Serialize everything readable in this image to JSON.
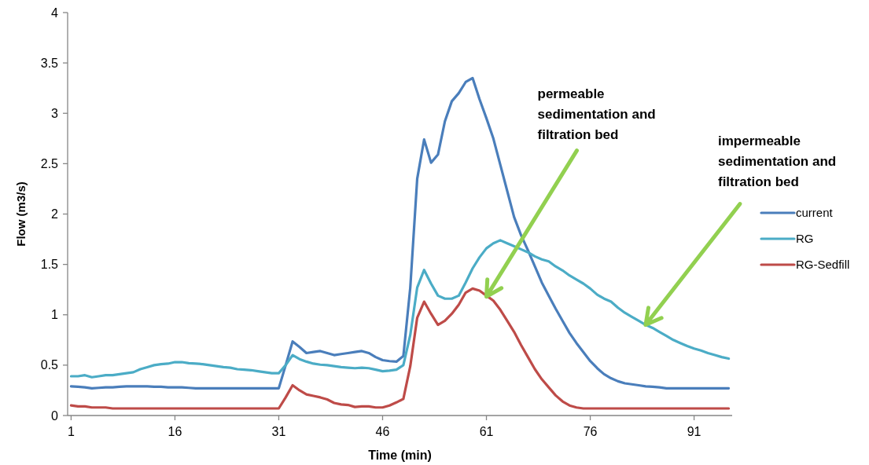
{
  "chart_data": {
    "type": "line",
    "xlabel": "Time (min)",
    "ylabel": "Flow (m3/s)",
    "x": [
      1,
      2,
      3,
      4,
      5,
      6,
      7,
      8,
      9,
      10,
      11,
      12,
      13,
      14,
      15,
      16,
      17,
      18,
      19,
      20,
      21,
      22,
      23,
      24,
      25,
      26,
      27,
      28,
      29,
      30,
      31,
      32,
      33,
      34,
      35,
      36,
      37,
      38,
      39,
      40,
      41,
      42,
      43,
      44,
      45,
      46,
      47,
      48,
      49,
      50,
      51,
      52,
      53,
      54,
      55,
      56,
      57,
      58,
      59,
      60,
      61,
      62,
      63,
      64,
      65,
      66,
      67,
      68,
      69,
      70,
      71,
      72,
      73,
      74,
      75,
      76,
      77,
      78,
      79,
      80,
      81,
      82,
      83,
      84,
      85,
      86,
      87,
      88,
      89,
      90,
      91,
      92,
      93,
      94,
      95,
      96
    ],
    "xlim": [
      0.5,
      96.5
    ],
    "xticks": [
      1,
      16,
      31,
      46,
      61,
      76,
      91
    ],
    "ylim": [
      0,
      4
    ],
    "yticks": [
      0,
      0.5,
      1,
      1.5,
      2,
      2.5,
      3,
      3.5,
      4
    ],
    "series": [
      {
        "name": "current",
        "color": "#4a7ebb",
        "values": [
          0.29,
          0.285,
          0.28,
          0.27,
          0.275,
          0.28,
          0.28,
          0.285,
          0.29,
          0.29,
          0.29,
          0.29,
          0.285,
          0.285,
          0.28,
          0.28,
          0.28,
          0.275,
          0.27,
          0.27,
          0.27,
          0.27,
          0.27,
          0.27,
          0.27,
          0.27,
          0.27,
          0.27,
          0.27,
          0.27,
          0.27,
          0.5,
          0.735,
          0.68,
          0.62,
          0.63,
          0.64,
          0.62,
          0.6,
          0.61,
          0.62,
          0.63,
          0.64,
          0.62,
          0.58,
          0.55,
          0.54,
          0.535,
          0.59,
          1.27,
          2.35,
          2.74,
          2.51,
          2.59,
          2.92,
          3.12,
          3.2,
          3.31,
          3.35,
          3.14,
          2.95,
          2.75,
          2.49,
          2.23,
          1.97,
          1.79,
          1.64,
          1.48,
          1.32,
          1.19,
          1.06,
          0.94,
          0.82,
          0.72,
          0.63,
          0.54,
          0.47,
          0.41,
          0.37,
          0.34,
          0.32,
          0.31,
          0.3,
          0.29,
          0.285,
          0.28,
          0.27,
          0.27,
          0.27,
          0.27,
          0.27,
          0.27,
          0.27,
          0.27,
          0.27,
          0.27
        ]
      },
      {
        "name": "RG",
        "color": "#4bacc6",
        "values": [
          0.39,
          0.39,
          0.4,
          0.38,
          0.39,
          0.4,
          0.4,
          0.41,
          0.42,
          0.43,
          0.46,
          0.48,
          0.5,
          0.51,
          0.515,
          0.53,
          0.53,
          0.52,
          0.515,
          0.51,
          0.5,
          0.49,
          0.48,
          0.475,
          0.46,
          0.455,
          0.45,
          0.44,
          0.43,
          0.42,
          0.42,
          0.5,
          0.6,
          0.56,
          0.535,
          0.515,
          0.505,
          0.5,
          0.49,
          0.48,
          0.475,
          0.47,
          0.475,
          0.47,
          0.455,
          0.44,
          0.445,
          0.455,
          0.5,
          0.8,
          1.27,
          1.445,
          1.31,
          1.19,
          1.16,
          1.16,
          1.19,
          1.32,
          1.46,
          1.57,
          1.66,
          1.71,
          1.74,
          1.71,
          1.68,
          1.65,
          1.62,
          1.58,
          1.55,
          1.53,
          1.48,
          1.44,
          1.39,
          1.35,
          1.31,
          1.26,
          1.2,
          1.16,
          1.13,
          1.07,
          1.02,
          0.98,
          0.94,
          0.9,
          0.87,
          0.83,
          0.79,
          0.75,
          0.72,
          0.69,
          0.665,
          0.645,
          0.62,
          0.6,
          0.58,
          0.565
        ]
      },
      {
        "name": "RG-Sedfill",
        "color": "#be4b48",
        "values": [
          0.1,
          0.09,
          0.09,
          0.08,
          0.08,
          0.08,
          0.07,
          0.07,
          0.07,
          0.07,
          0.07,
          0.07,
          0.07,
          0.07,
          0.07,
          0.07,
          0.07,
          0.07,
          0.07,
          0.07,
          0.07,
          0.07,
          0.07,
          0.07,
          0.07,
          0.07,
          0.07,
          0.07,
          0.07,
          0.07,
          0.07,
          0.18,
          0.3,
          0.25,
          0.21,
          0.195,
          0.18,
          0.16,
          0.125,
          0.11,
          0.105,
          0.085,
          0.09,
          0.09,
          0.08,
          0.08,
          0.1,
          0.13,
          0.165,
          0.49,
          0.97,
          1.13,
          1.01,
          0.9,
          0.94,
          1.01,
          1.1,
          1.22,
          1.26,
          1.24,
          1.19,
          1.14,
          1.05,
          0.94,
          0.83,
          0.7,
          0.58,
          0.46,
          0.36,
          0.28,
          0.2,
          0.14,
          0.1,
          0.08,
          0.07,
          0.07,
          0.07,
          0.07,
          0.07,
          0.07,
          0.07,
          0.07,
          0.07,
          0.07,
          0.07,
          0.07,
          0.07,
          0.07,
          0.07,
          0.07,
          0.07,
          0.07,
          0.07,
          0.07,
          0.07,
          0.07
        ]
      }
    ],
    "annotations": [
      {
        "text": "permeable sedimentation and filtration bed",
        "x": 61,
        "y": 1.18
      },
      {
        "text": "impermeable sedimentation and filtration bed",
        "x": 84,
        "y": 0.9
      }
    ],
    "legend": "right",
    "grid": false,
    "marker": "none",
    "line_style": "solid"
  }
}
